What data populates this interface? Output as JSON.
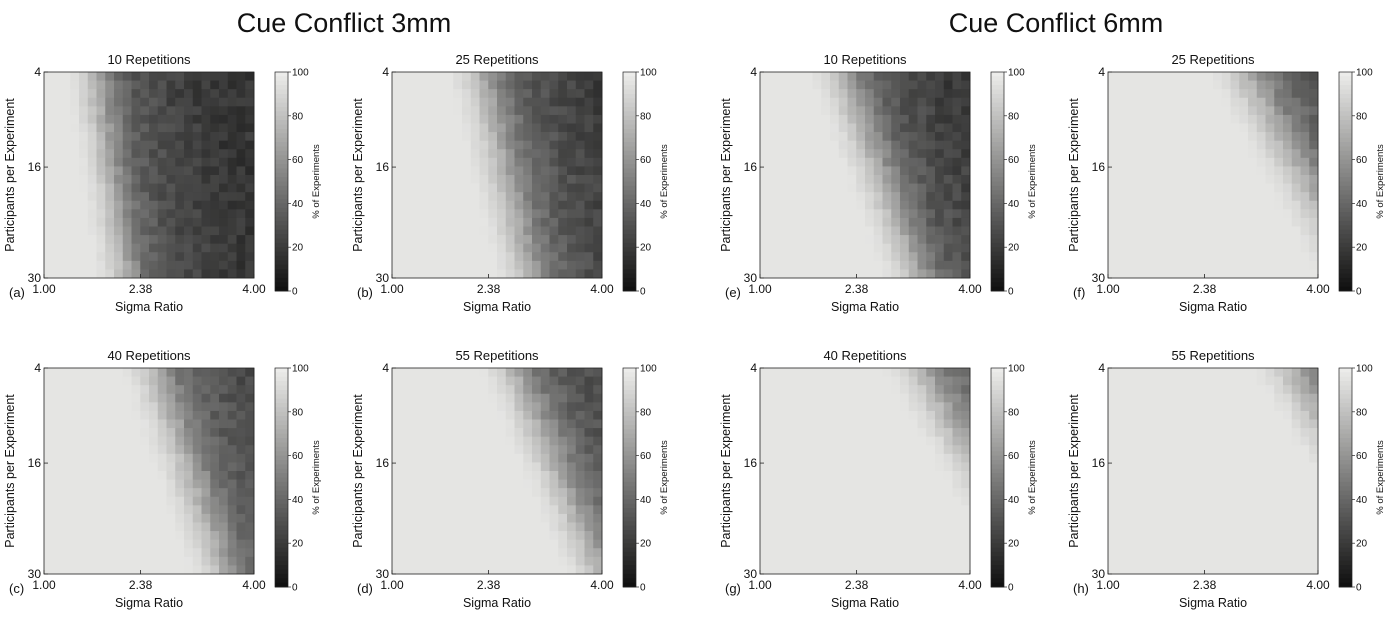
{
  "groups": [
    {
      "title": "Cue Conflict 3mm"
    },
    {
      "title": "Cue Conflict 6mm"
    }
  ],
  "axes": {
    "xlabel": "Sigma Ratio",
    "ylabel": "Participants per Experiment",
    "xticks": [
      "1.00",
      "2.38",
      "4.00"
    ],
    "yticks": [
      "4",
      "16",
      "30"
    ],
    "colorbar_label": "% of Experiments",
    "colorbar_ticks": [
      "0",
      "20",
      "40",
      "60",
      "80",
      "100"
    ]
  },
  "colors": {
    "scale_low": "#0e0e0e",
    "scale_high": "#eeeeec",
    "background": "#ffffff"
  },
  "chart_data": [
    {
      "type": "heatmap",
      "group": "Cue Conflict 3mm",
      "panel_label": "(a)",
      "title": "10 Repetitions",
      "xlabel": "Sigma Ratio",
      "ylabel": "Participants per Experiment",
      "xlim": [
        1.0,
        4.0
      ],
      "ylim": [
        4,
        30
      ],
      "xticks": [
        1.0,
        2.38,
        4.0
      ],
      "yticks": [
        4,
        16,
        30
      ],
      "grid_cols": 24,
      "grid_rows": 24,
      "colorbar_range": [
        0,
        100
      ],
      "boundary_x_at_top": 1.75,
      "boundary_x_at_bottom": 2.2,
      "transition_width": 0.3,
      "min_value": 18
    },
    {
      "type": "heatmap",
      "group": "Cue Conflict 3mm",
      "panel_label": "(b)",
      "title": "25 Repetitions",
      "xlabel": "Sigma Ratio",
      "ylabel": "Participants per Experiment",
      "xlim": [
        1.0,
        4.0
      ],
      "ylim": [
        4,
        30
      ],
      "xticks": [
        1.0,
        2.38,
        4.0
      ],
      "yticks": [
        4,
        16,
        30
      ],
      "grid_cols": 24,
      "grid_rows": 24,
      "colorbar_range": [
        0,
        100
      ],
      "boundary_x_at_top": 2.3,
      "boundary_x_at_bottom": 3.0,
      "transition_width": 0.35,
      "min_value": 20
    },
    {
      "type": "heatmap",
      "group": "Cue Conflict 3mm",
      "panel_label": "(c)",
      "title": "40 Repetitions",
      "xlabel": "Sigma Ratio",
      "ylabel": "Participants per Experiment",
      "xlim": [
        1.0,
        4.0
      ],
      "ylim": [
        4,
        30
      ],
      "xticks": [
        1.0,
        2.38,
        4.0
      ],
      "yticks": [
        4,
        16,
        30
      ],
      "grid_cols": 24,
      "grid_rows": 24,
      "colorbar_range": [
        0,
        100
      ],
      "boundary_x_at_top": 2.6,
      "boundary_x_at_bottom": 3.6,
      "transition_width": 0.35,
      "min_value": 22
    },
    {
      "type": "heatmap",
      "group": "Cue Conflict 3mm",
      "panel_label": "(d)",
      "title": "55 Repetitions",
      "xlabel": "Sigma Ratio",
      "ylabel": "Participants per Experiment",
      "xlim": [
        1.0,
        4.0
      ],
      "ylim": [
        4,
        30
      ],
      "xticks": [
        1.0,
        2.38,
        4.0
      ],
      "yticks": [
        4,
        16,
        30
      ],
      "grid_cols": 24,
      "grid_rows": 24,
      "colorbar_range": [
        0,
        100
      ],
      "boundary_x_at_top": 2.75,
      "boundary_x_at_bottom": 4.0,
      "transition_width": 0.35,
      "min_value": 22
    },
    {
      "type": "heatmap",
      "group": "Cue Conflict 6mm",
      "panel_label": "(e)",
      "title": "10 Repetitions",
      "xlabel": "Sigma Ratio",
      "ylabel": "Participants per Experiment",
      "xlim": [
        1.0,
        4.0
      ],
      "ylim": [
        4,
        30
      ],
      "xticks": [
        1.0,
        2.38,
        4.0
      ],
      "yticks": [
        4,
        16,
        30
      ],
      "grid_cols": 24,
      "grid_rows": 24,
      "colorbar_range": [
        0,
        100
      ],
      "boundary_x_at_top": 2.2,
      "boundary_x_at_bottom": 3.3,
      "transition_width": 0.35,
      "min_value": 18
    },
    {
      "type": "heatmap",
      "group": "Cue Conflict 6mm",
      "panel_label": "(f)",
      "title": "25 Repetitions",
      "xlabel": "Sigma Ratio",
      "ylabel": "Participants per Experiment",
      "xlim": [
        1.0,
        4.0
      ],
      "ylim": [
        4,
        30
      ],
      "xticks": [
        1.0,
        2.38,
        4.0
      ],
      "yticks": [
        4,
        16,
        30
      ],
      "grid_cols": 24,
      "grid_rows": 24,
      "colorbar_range": [
        0,
        100
      ],
      "boundary_x_at_top": 3.0,
      "boundary_x_at_bottom": 4.6,
      "transition_width": 0.4,
      "min_value": 22
    },
    {
      "type": "heatmap",
      "group": "Cue Conflict 6mm",
      "panel_label": "(g)",
      "title": "40 Repetitions",
      "xlabel": "Sigma Ratio",
      "ylabel": "Participants per Experiment",
      "xlim": [
        1.0,
        4.0
      ],
      "ylim": [
        4,
        30
      ],
      "xticks": [
        1.0,
        2.38,
        4.0
      ],
      "yticks": [
        4,
        16,
        30
      ],
      "grid_cols": 24,
      "grid_rows": 24,
      "colorbar_range": [
        0,
        100
      ],
      "boundary_x_at_top": 3.3,
      "boundary_x_at_bottom": 5.0,
      "transition_width": 0.4,
      "min_value": 25
    },
    {
      "type": "heatmap",
      "group": "Cue Conflict 6mm",
      "panel_label": "(h)",
      "title": "55 Repetitions",
      "xlabel": "Sigma Ratio",
      "ylabel": "Participants per Experiment",
      "xlim": [
        1.0,
        4.0
      ],
      "ylim": [
        4,
        30
      ],
      "xticks": [
        1.0,
        2.38,
        4.0
      ],
      "yticks": [
        4,
        16,
        30
      ],
      "grid_cols": 24,
      "grid_rows": 24,
      "colorbar_range": [
        0,
        100
      ],
      "boundary_x_at_top": 3.6,
      "boundary_x_at_bottom": 5.4,
      "transition_width": 0.4,
      "min_value": 28
    }
  ]
}
